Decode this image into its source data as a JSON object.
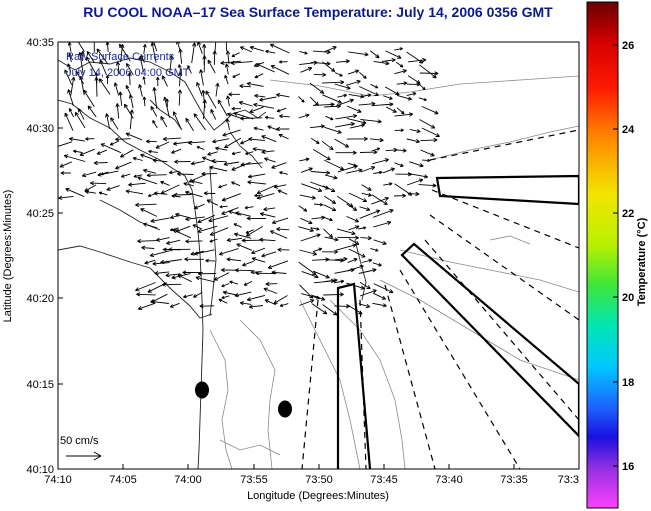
{
  "title": "RU COOL  NOAA–17  Sea Surface Temperature:  July 14, 2006 0356 GMT",
  "map": {
    "xlabel": "Longitude (Degrees:Minutes)",
    "ylabel": "Latitude (Degrees:Minutes)",
    "x_ticks": [
      "74:10",
      "74:05",
      "74:00",
      "73:55",
      "73:50",
      "73:45",
      "73:40",
      "73:35",
      "73:3"
    ],
    "y_ticks": [
      "40:35",
      "40:30",
      "40:25",
      "40:20",
      "40:15",
      "40:10"
    ],
    "overlay_line1": "Raw Surface Currents",
    "overlay_line2": "July 14, 2006 04:00 GMT",
    "scale_label": "50 cm/s"
  },
  "colorbar": {
    "label": "Temperature (°C)",
    "ticks": [
      "26",
      "24",
      "22",
      "20",
      "18",
      "16"
    ]
  }
}
